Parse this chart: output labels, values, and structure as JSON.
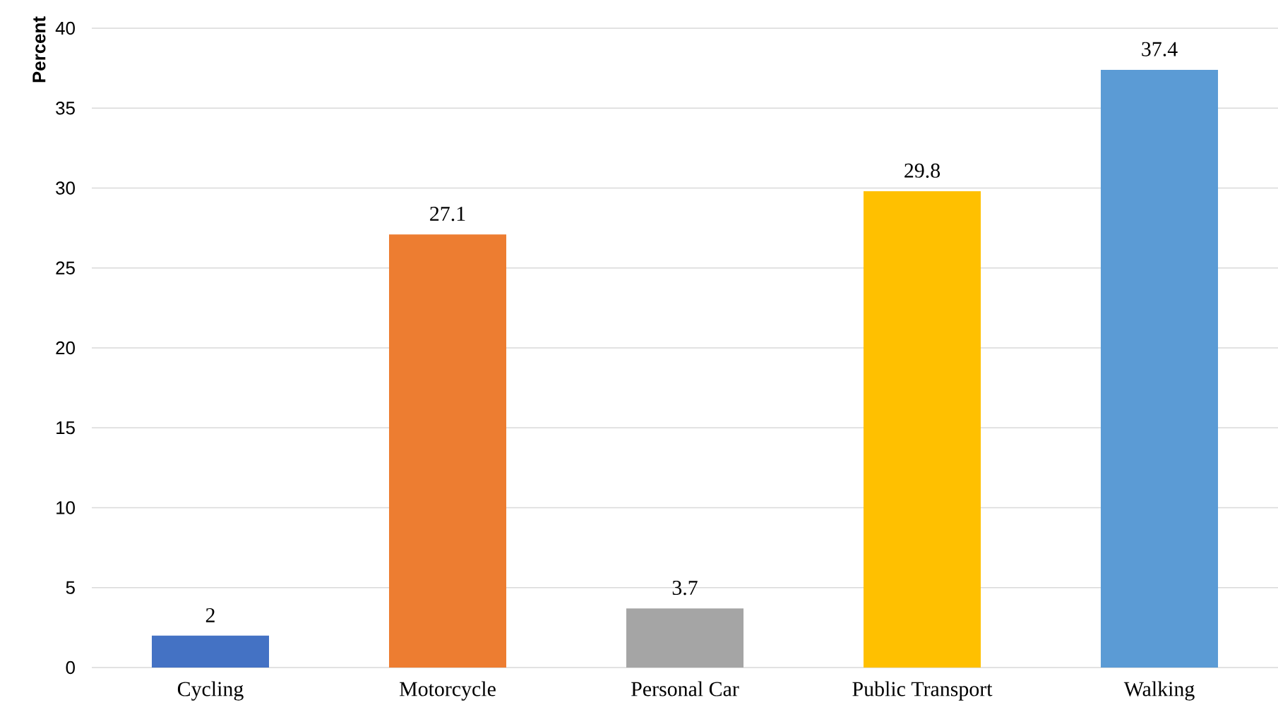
{
  "chart_data": {
    "type": "bar",
    "ylabel": "Percent",
    "categories": [
      "Cycling",
      "Motorcycle",
      "Personal Car",
      "Public Transport",
      "Walking"
    ],
    "values": [
      2,
      27.1,
      3.7,
      29.8,
      37.4
    ],
    "colors": [
      "#4472c4",
      "#ed7d31",
      "#a5a5a5",
      "#ffc000",
      "#5b9bd5"
    ],
    "ylim": [
      0,
      40
    ],
    "yticks": [
      0,
      5,
      10,
      15,
      20,
      25,
      30,
      35,
      40
    ],
    "grid": "y",
    "data_labels": true
  }
}
